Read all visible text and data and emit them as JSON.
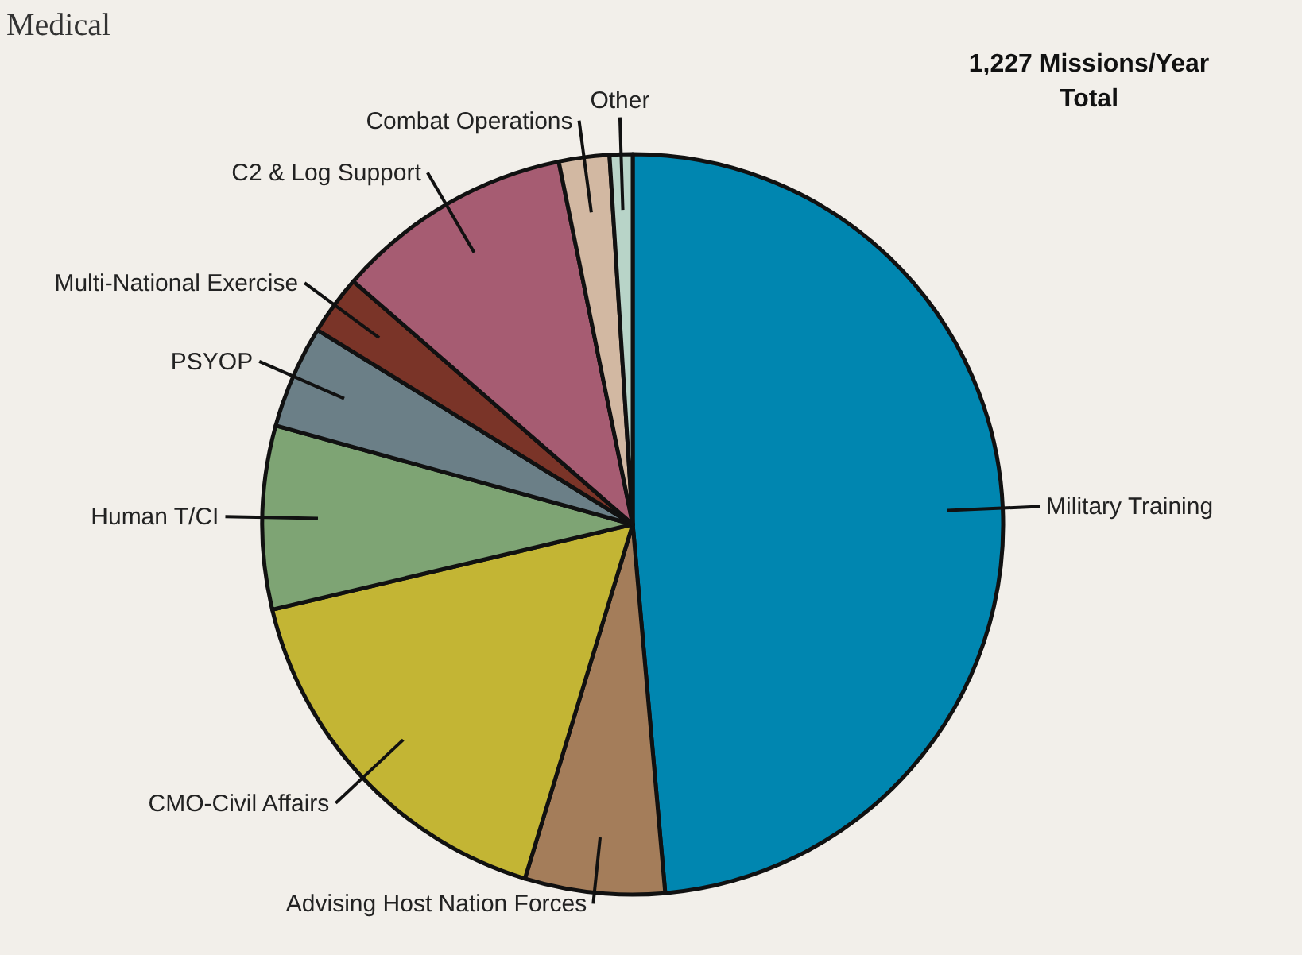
{
  "chart_data": {
    "type": "pie",
    "title": "1,227 Missions/Year Total",
    "categories": [
      "Military Training",
      "Advising Host Nation Forces",
      "CMO-Civil Affairs",
      "Human T/CI",
      "PSYOP",
      "Multi-National Exercise",
      "C2 & Log Support",
      "Combat Operations",
      "Other"
    ],
    "values": [
      48.6,
      6.1,
      16.6,
      8.0,
      4.5,
      2.6,
      10.4,
      2.2,
      1.0
    ],
    "colors": [
      "#0086b0",
      "#a47d5a",
      "#c3b534",
      "#7ea474",
      "#6b7f87",
      "#7a3428",
      "#a65c72",
      "#d2b8a2",
      "#b8d4c8"
    ],
    "annotations": [
      "Medical"
    ]
  }
}
